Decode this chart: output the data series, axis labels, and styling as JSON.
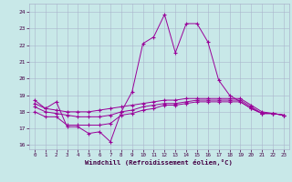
{
  "xlabel": "Windchill (Refroidissement éolien,°C)",
  "bg_color": "#c8e8e8",
  "line_color": "#990099",
  "grid_color": "#aab4cc",
  "ylim": [
    15.75,
    24.5
  ],
  "xlim": [
    -0.5,
    23.5
  ],
  "yticks": [
    16,
    17,
    18,
    19,
    20,
    21,
    22,
    23,
    24
  ],
  "xticks": [
    0,
    1,
    2,
    3,
    4,
    5,
    6,
    7,
    8,
    9,
    10,
    11,
    12,
    13,
    14,
    15,
    16,
    17,
    18,
    19,
    20,
    21,
    22,
    23
  ],
  "hours": [
    0,
    1,
    2,
    3,
    4,
    5,
    6,
    7,
    8,
    9,
    10,
    11,
    12,
    13,
    14,
    15,
    16,
    17,
    18,
    19,
    20,
    21,
    22,
    23
  ],
  "line_main_x": [
    0,
    1,
    2,
    3,
    4,
    5,
    6,
    7,
    8,
    9,
    10,
    11,
    12,
    13,
    14,
    15,
    16,
    17,
    18,
    20,
    21,
    22,
    23
  ],
  "line_main_y": [
    18.7,
    18.2,
    18.6,
    17.1,
    17.1,
    16.7,
    16.8,
    16.2,
    18.0,
    19.2,
    22.1,
    22.5,
    23.85,
    21.55,
    23.3,
    23.3,
    22.2,
    19.9,
    19.0,
    18.2,
    17.9,
    17.9,
    17.8
  ],
  "line_s1_y": [
    18.0,
    17.7,
    17.7,
    17.2,
    17.2,
    17.2,
    17.2,
    17.3,
    17.8,
    17.9,
    18.1,
    18.2,
    18.4,
    18.4,
    18.5,
    18.6,
    18.6,
    18.6,
    18.6,
    18.6,
    18.2,
    17.9,
    17.9,
    17.8
  ],
  "line_s2_y": [
    18.5,
    18.2,
    18.1,
    18.0,
    18.0,
    18.0,
    18.1,
    18.2,
    18.3,
    18.4,
    18.5,
    18.6,
    18.7,
    18.7,
    18.8,
    18.8,
    18.8,
    18.8,
    18.8,
    18.8,
    18.4,
    18.0,
    17.9,
    17.8
  ],
  "line_s3_y": [
    18.3,
    18.0,
    17.9,
    17.8,
    17.7,
    17.7,
    17.7,
    17.8,
    18.0,
    18.1,
    18.3,
    18.4,
    18.5,
    18.5,
    18.6,
    18.7,
    18.7,
    18.7,
    18.7,
    18.7,
    18.3,
    17.9,
    17.9,
    17.8
  ]
}
